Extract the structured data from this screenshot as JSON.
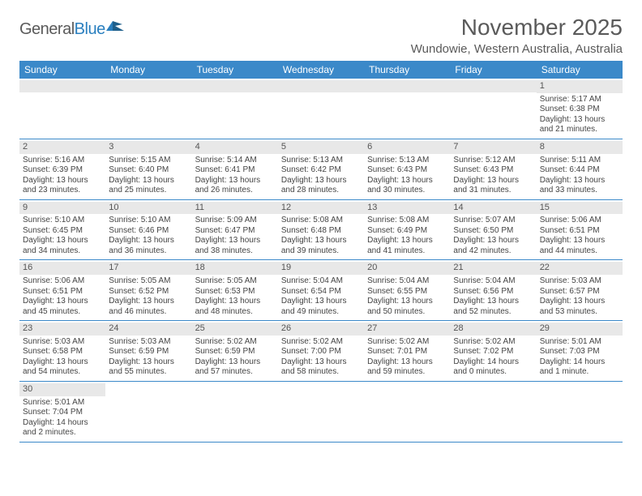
{
  "logo": {
    "brand_left": "General",
    "brand_right": "Blue"
  },
  "header": {
    "month_title": "November 2025",
    "location": "Wundowie, Western Australia, Australia"
  },
  "colors": {
    "header_bar": "#3b89c9",
    "daynum_bg": "#e8e8e8",
    "rule": "#3b89c9",
    "text": "#444444",
    "title_text": "#5a5a5a"
  },
  "dow": [
    "Sunday",
    "Monday",
    "Tuesday",
    "Wednesday",
    "Thursday",
    "Friday",
    "Saturday"
  ],
  "weeks": [
    [
      {
        "n": "",
        "sun": "",
        "set": "",
        "day": ""
      },
      {
        "n": "",
        "sun": "",
        "set": "",
        "day": ""
      },
      {
        "n": "",
        "sun": "",
        "set": "",
        "day": ""
      },
      {
        "n": "",
        "sun": "",
        "set": "",
        "day": ""
      },
      {
        "n": "",
        "sun": "",
        "set": "",
        "day": ""
      },
      {
        "n": "",
        "sun": "",
        "set": "",
        "day": ""
      },
      {
        "n": "1",
        "sun": "Sunrise: 5:17 AM",
        "set": "Sunset: 6:38 PM",
        "day": "Daylight: 13 hours and 21 minutes."
      }
    ],
    [
      {
        "n": "2",
        "sun": "Sunrise: 5:16 AM",
        "set": "Sunset: 6:39 PM",
        "day": "Daylight: 13 hours and 23 minutes."
      },
      {
        "n": "3",
        "sun": "Sunrise: 5:15 AM",
        "set": "Sunset: 6:40 PM",
        "day": "Daylight: 13 hours and 25 minutes."
      },
      {
        "n": "4",
        "sun": "Sunrise: 5:14 AM",
        "set": "Sunset: 6:41 PM",
        "day": "Daylight: 13 hours and 26 minutes."
      },
      {
        "n": "5",
        "sun": "Sunrise: 5:13 AM",
        "set": "Sunset: 6:42 PM",
        "day": "Daylight: 13 hours and 28 minutes."
      },
      {
        "n": "6",
        "sun": "Sunrise: 5:13 AM",
        "set": "Sunset: 6:43 PM",
        "day": "Daylight: 13 hours and 30 minutes."
      },
      {
        "n": "7",
        "sun": "Sunrise: 5:12 AM",
        "set": "Sunset: 6:43 PM",
        "day": "Daylight: 13 hours and 31 minutes."
      },
      {
        "n": "8",
        "sun": "Sunrise: 5:11 AM",
        "set": "Sunset: 6:44 PM",
        "day": "Daylight: 13 hours and 33 minutes."
      }
    ],
    [
      {
        "n": "9",
        "sun": "Sunrise: 5:10 AM",
        "set": "Sunset: 6:45 PM",
        "day": "Daylight: 13 hours and 34 minutes."
      },
      {
        "n": "10",
        "sun": "Sunrise: 5:10 AM",
        "set": "Sunset: 6:46 PM",
        "day": "Daylight: 13 hours and 36 minutes."
      },
      {
        "n": "11",
        "sun": "Sunrise: 5:09 AM",
        "set": "Sunset: 6:47 PM",
        "day": "Daylight: 13 hours and 38 minutes."
      },
      {
        "n": "12",
        "sun": "Sunrise: 5:08 AM",
        "set": "Sunset: 6:48 PM",
        "day": "Daylight: 13 hours and 39 minutes."
      },
      {
        "n": "13",
        "sun": "Sunrise: 5:08 AM",
        "set": "Sunset: 6:49 PM",
        "day": "Daylight: 13 hours and 41 minutes."
      },
      {
        "n": "14",
        "sun": "Sunrise: 5:07 AM",
        "set": "Sunset: 6:50 PM",
        "day": "Daylight: 13 hours and 42 minutes."
      },
      {
        "n": "15",
        "sun": "Sunrise: 5:06 AM",
        "set": "Sunset: 6:51 PM",
        "day": "Daylight: 13 hours and 44 minutes."
      }
    ],
    [
      {
        "n": "16",
        "sun": "Sunrise: 5:06 AM",
        "set": "Sunset: 6:51 PM",
        "day": "Daylight: 13 hours and 45 minutes."
      },
      {
        "n": "17",
        "sun": "Sunrise: 5:05 AM",
        "set": "Sunset: 6:52 PM",
        "day": "Daylight: 13 hours and 46 minutes."
      },
      {
        "n": "18",
        "sun": "Sunrise: 5:05 AM",
        "set": "Sunset: 6:53 PM",
        "day": "Daylight: 13 hours and 48 minutes."
      },
      {
        "n": "19",
        "sun": "Sunrise: 5:04 AM",
        "set": "Sunset: 6:54 PM",
        "day": "Daylight: 13 hours and 49 minutes."
      },
      {
        "n": "20",
        "sun": "Sunrise: 5:04 AM",
        "set": "Sunset: 6:55 PM",
        "day": "Daylight: 13 hours and 50 minutes."
      },
      {
        "n": "21",
        "sun": "Sunrise: 5:04 AM",
        "set": "Sunset: 6:56 PM",
        "day": "Daylight: 13 hours and 52 minutes."
      },
      {
        "n": "22",
        "sun": "Sunrise: 5:03 AM",
        "set": "Sunset: 6:57 PM",
        "day": "Daylight: 13 hours and 53 minutes."
      }
    ],
    [
      {
        "n": "23",
        "sun": "Sunrise: 5:03 AM",
        "set": "Sunset: 6:58 PM",
        "day": "Daylight: 13 hours and 54 minutes."
      },
      {
        "n": "24",
        "sun": "Sunrise: 5:03 AM",
        "set": "Sunset: 6:59 PM",
        "day": "Daylight: 13 hours and 55 minutes."
      },
      {
        "n": "25",
        "sun": "Sunrise: 5:02 AM",
        "set": "Sunset: 6:59 PM",
        "day": "Daylight: 13 hours and 57 minutes."
      },
      {
        "n": "26",
        "sun": "Sunrise: 5:02 AM",
        "set": "Sunset: 7:00 PM",
        "day": "Daylight: 13 hours and 58 minutes."
      },
      {
        "n": "27",
        "sun": "Sunrise: 5:02 AM",
        "set": "Sunset: 7:01 PM",
        "day": "Daylight: 13 hours and 59 minutes."
      },
      {
        "n": "28",
        "sun": "Sunrise: 5:02 AM",
        "set": "Sunset: 7:02 PM",
        "day": "Daylight: 14 hours and 0 minutes."
      },
      {
        "n": "29",
        "sun": "Sunrise: 5:01 AM",
        "set": "Sunset: 7:03 PM",
        "day": "Daylight: 14 hours and 1 minute."
      }
    ],
    [
      {
        "n": "30",
        "sun": "Sunrise: 5:01 AM",
        "set": "Sunset: 7:04 PM",
        "day": "Daylight: 14 hours and 2 minutes."
      },
      {
        "n": "",
        "sun": "",
        "set": "",
        "day": ""
      },
      {
        "n": "",
        "sun": "",
        "set": "",
        "day": ""
      },
      {
        "n": "",
        "sun": "",
        "set": "",
        "day": ""
      },
      {
        "n": "",
        "sun": "",
        "set": "",
        "day": ""
      },
      {
        "n": "",
        "sun": "",
        "set": "",
        "day": ""
      },
      {
        "n": "",
        "sun": "",
        "set": "",
        "day": ""
      }
    ]
  ]
}
